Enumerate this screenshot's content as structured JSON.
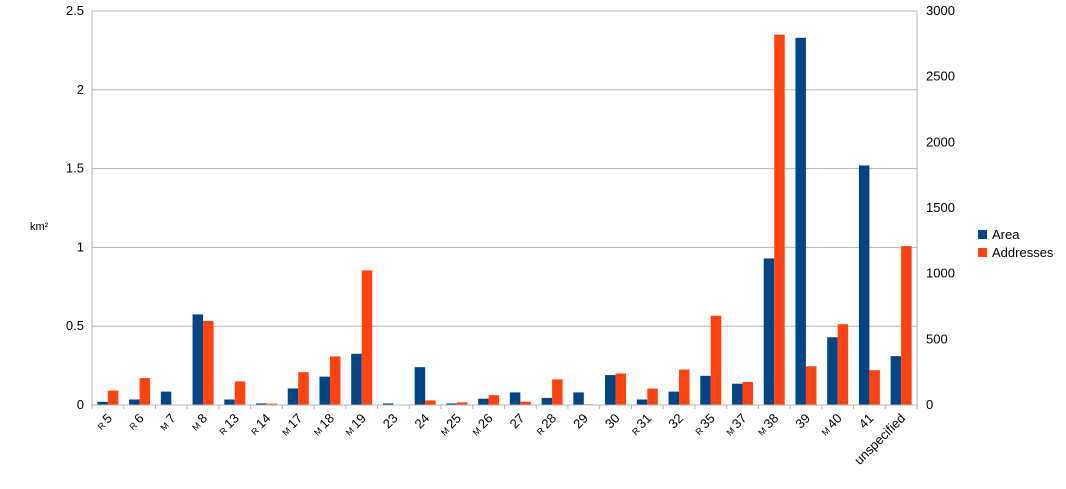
{
  "chart_data": {
    "type": "bar",
    "categories": [
      "R 5",
      "R 6",
      "M 7",
      "M 8",
      "R 13",
      "R 14",
      "M 17",
      "M 18",
      "M 19",
      "23",
      "24",
      "M 25",
      "M 26",
      "27",
      "R 28",
      "29",
      "30",
      "R 31",
      "32",
      "R 35",
      "M 37",
      "M 38",
      "39",
      "M 40",
      "41",
      "unspecified"
    ],
    "ylabel": "km²",
    "ylim": [
      0,
      2.5
    ],
    "y_ticks": [
      "0",
      "0.5",
      "1",
      "1.5",
      "2",
      "2.5"
    ],
    "y2lim": [
      0,
      3000
    ],
    "y2_ticks": [
      "0",
      "500",
      "1000",
      "1500",
      "2000",
      "2500",
      "3000"
    ],
    "grid": true,
    "legend_position": "right",
    "series": [
      {
        "name": "Area",
        "axis": "left",
        "color": "#004586",
        "values": [
          0.02,
          0.035,
          0.085,
          0.575,
          0.035,
          0.01,
          0.105,
          0.18,
          0.325,
          0.01,
          0.24,
          0.01,
          0.04,
          0.08,
          0.045,
          0.08,
          0.19,
          0.035,
          0.085,
          0.185,
          0.135,
          0.93,
          2.33,
          0.43,
          1.52,
          0.31
        ]
      },
      {
        "name": "Addresses",
        "axis": "right",
        "color": "#ff420e",
        "values": [
          110,
          205,
          0,
          640,
          180,
          10,
          250,
          370,
          1025,
          0,
          35,
          20,
          75,
          25,
          195,
          5,
          240,
          125,
          270,
          680,
          175,
          2820,
          295,
          615,
          265,
          1210
        ]
      }
    ]
  }
}
